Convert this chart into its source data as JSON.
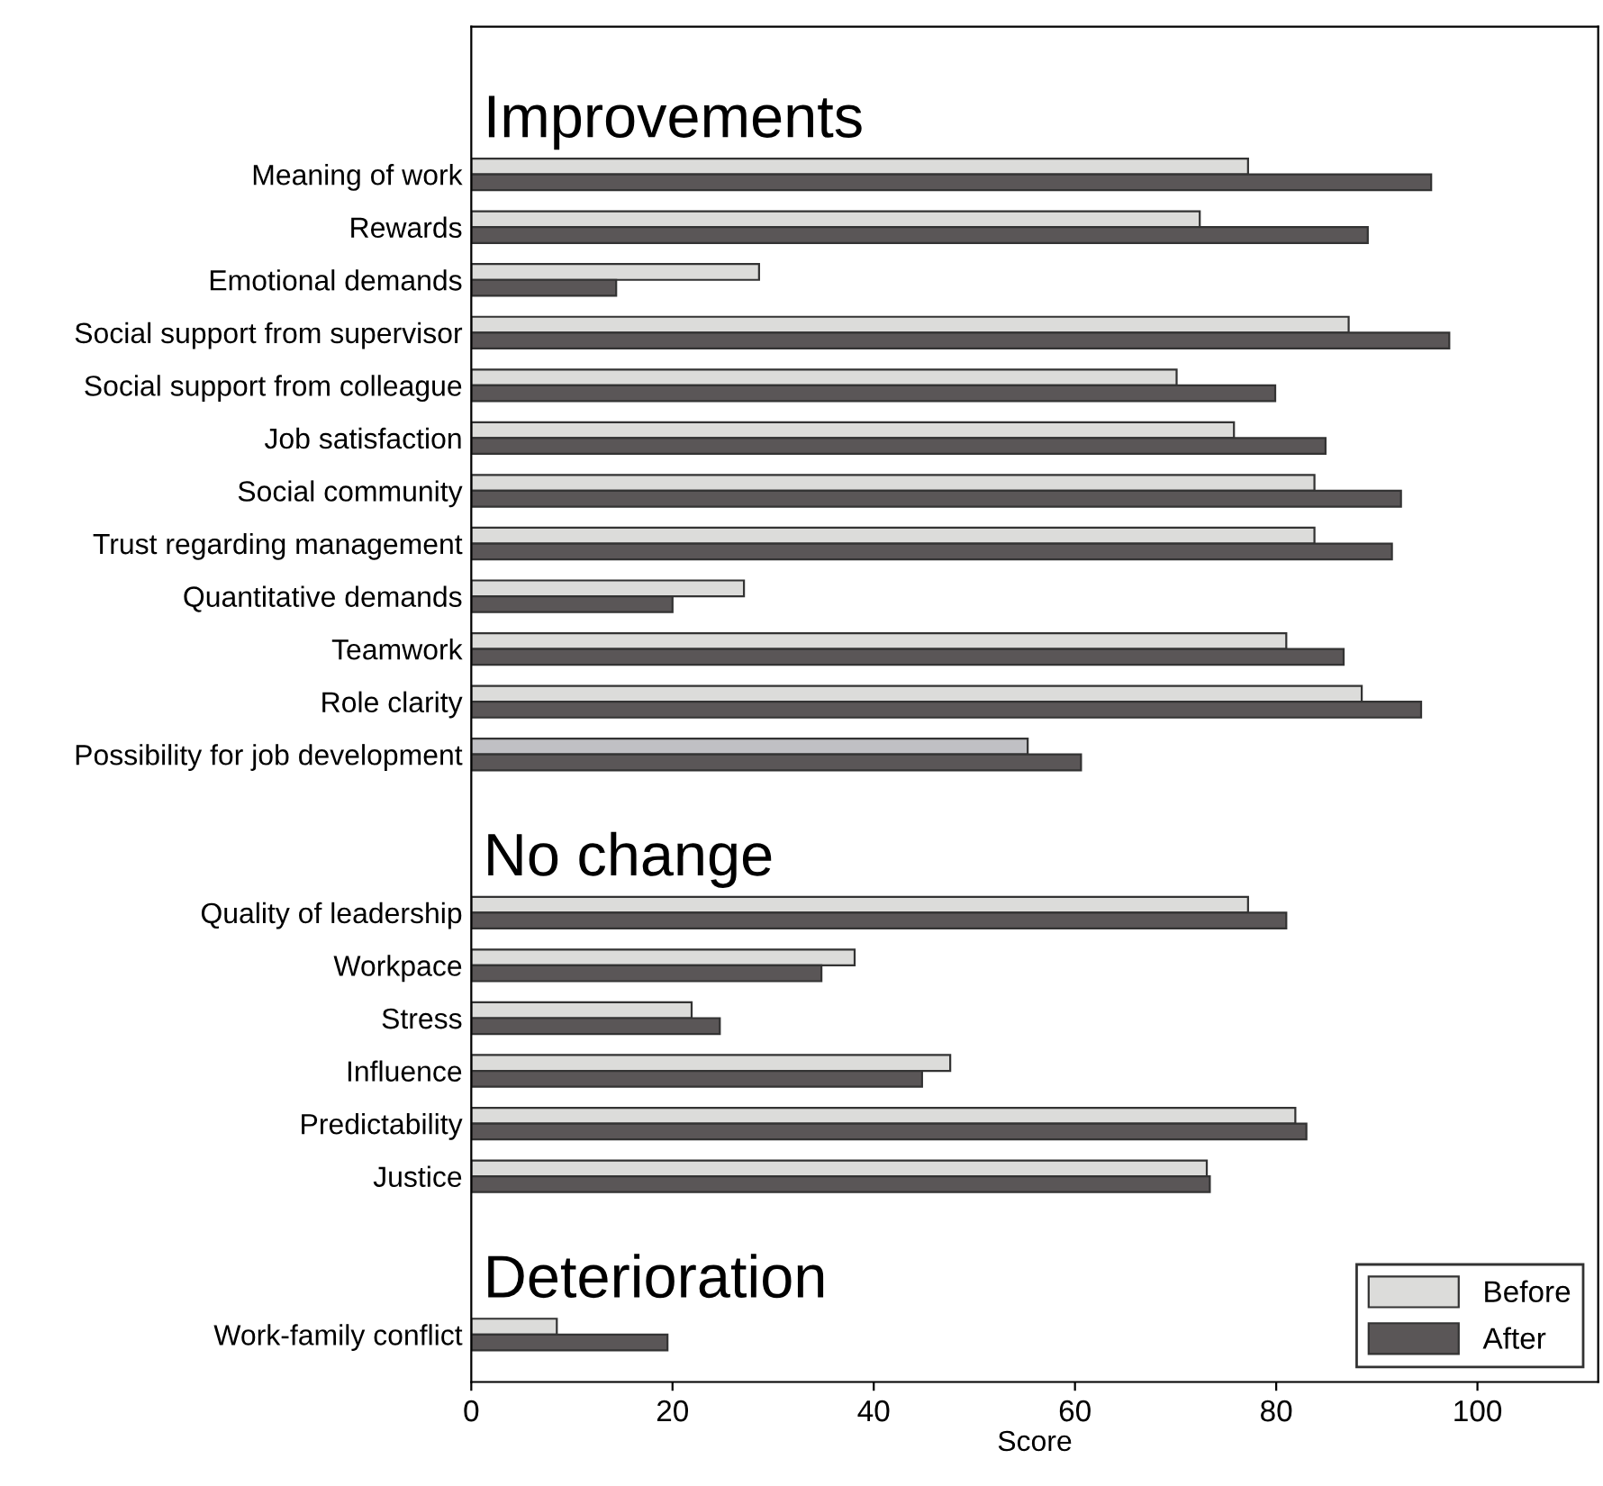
{
  "chart_data": {
    "type": "bar",
    "orientation": "horizontal",
    "xlabel": "Score",
    "categories": [
      null,
      "Meaning of work",
      "Rewards",
      "Emotional demands",
      "Social support from supervisor",
      "Social support from colleague",
      "Job satisfaction",
      "Social community",
      "Trust regarding management",
      "Quantitative demands",
      "Teamwork",
      "Role clarity",
      "Possibility for job development",
      null,
      null,
      "Quality of leadership",
      "Workpace",
      "Stress",
      "Influence",
      "Predictability",
      "Justice",
      null,
      null,
      "Work-family conflict"
    ],
    "series": [
      {
        "name": "Before",
        "color": "#dcdcda",
        "colors": [
          "#dcdcda",
          "#dcdcda",
          "#dcdcda",
          "#dcdcda",
          "#dcdcda",
          "#dcdcda",
          "#dcdcda",
          "#dcdcda",
          "#dcdcda",
          "#dcdcda",
          "#dcdcda",
          "#dcdcda",
          "#c0c0c4",
          "#dcdcda",
          "#dcdcda",
          "#dcdcda",
          "#dcdcda",
          "#dcdcda",
          "#dcdcda",
          "#dcdcda",
          "#dcdcda",
          "#dcdcda",
          "#dcdcda",
          "#dcdcda"
        ],
        "values": [
          null,
          77.2,
          72.4,
          28.6,
          87.2,
          70.1,
          75.8,
          83.8,
          83.8,
          27.1,
          81.0,
          88.5,
          55.3,
          null,
          null,
          77.2,
          38.1,
          21.9,
          47.6,
          81.9,
          73.1,
          null,
          null,
          8.5
        ]
      },
      {
        "name": "After",
        "color": "#5a5657",
        "values": [
          null,
          95.4,
          89.1,
          14.4,
          97.2,
          79.9,
          84.9,
          92.4,
          91.5,
          20.0,
          86.7,
          94.4,
          60.6,
          null,
          null,
          81.0,
          34.8,
          24.7,
          44.8,
          83.0,
          73.4,
          null,
          null,
          19.5
        ]
      }
    ],
    "annotations": [
      "Improvements",
      "No change",
      "Deterioration"
    ],
    "xlim": [
      0,
      112
    ],
    "xticks": [
      0,
      20,
      40,
      60,
      80,
      100
    ],
    "grid": false,
    "legend": "bottom right"
  }
}
